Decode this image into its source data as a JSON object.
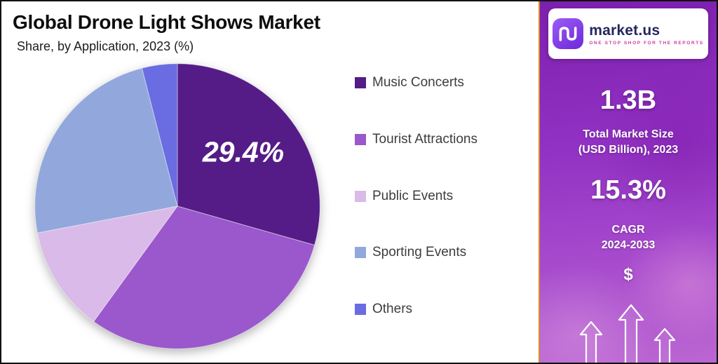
{
  "chart": {
    "title": "Global Drone Light Shows Market",
    "subtitle": "Share, by Application, 2023 (%)"
  },
  "chart_data": {
    "type": "pie",
    "title": "Global Drone Light Shows Market",
    "subtitle": "Share, by Application, 2023 (%)",
    "categories": [
      "Music Concerts",
      "Tourist Attractions",
      "Public Events",
      "Sporting Events",
      "Others"
    ],
    "values": [
      29.4,
      30.6,
      12.0,
      24.0,
      4.0
    ],
    "colors": [
      "#551c87",
      "#9a58cc",
      "#dabae9",
      "#92a8dc",
      "#6a6ce1"
    ],
    "start_angle_deg": 0,
    "direction": "clockwise",
    "legend_position": "right",
    "data_label": {
      "text": "29.4%",
      "slice": "Music Concerts"
    },
    "note": "Only the 29.4% slice value is printed on the chart; other slice values are estimated from arc angles."
  },
  "legend": {
    "items": [
      {
        "label": "Music Concerts",
        "color": "#551c87"
      },
      {
        "label": "Tourist Attractions",
        "color": "#9a58cc"
      },
      {
        "label": "Public Events",
        "color": "#dabae9"
      },
      {
        "label": "Sporting Events",
        "color": "#92a8dc"
      },
      {
        "label": "Others",
        "color": "#6a6ce1"
      }
    ]
  },
  "sidebar": {
    "logo": {
      "brand": "market.us",
      "tagline": "ONE STOP SHOP FOR THE REPORTS",
      "icon": "market-us-monogram-icon"
    },
    "stats": {
      "market_size_value": "1.3B",
      "market_size_label_line1": "Total Market Size",
      "market_size_label_line2": "(USD Billion), 2023",
      "cagr_value": "15.3%",
      "cagr_label_line1": "CAGR",
      "cagr_label_line2": "2024-2033"
    },
    "currency_symbol": "$",
    "decor_icons": [
      "up-arrow-icon",
      "up-arrow-icon",
      "up-arrow-icon"
    ],
    "accent_colors": {
      "panel_gradient_top": "#7d1fae",
      "panel_gradient_bottom": "#bb66d2",
      "divider": "#d98e2b"
    }
  }
}
